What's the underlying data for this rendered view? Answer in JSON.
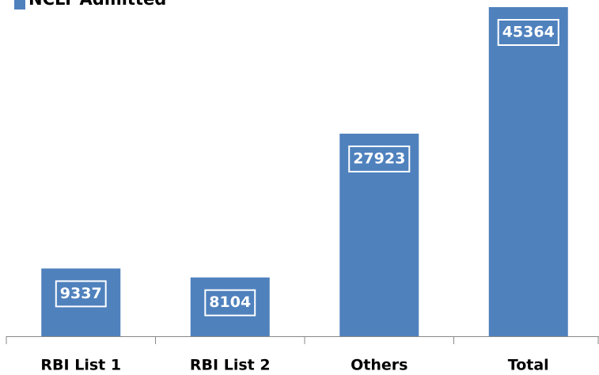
{
  "chart_data": {
    "type": "bar",
    "categories": [
      "RBI List 1",
      "RBI List 2",
      "Others",
      "Total"
    ],
    "series": [
      {
        "name": "NCLT Admitted",
        "color": "#4f81bd",
        "values": [
          9337,
          8104,
          27923,
          45364
        ]
      }
    ]
  }
}
